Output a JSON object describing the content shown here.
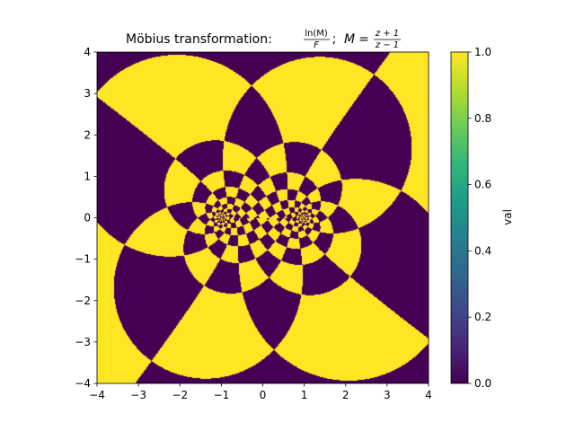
{
  "chart_data": {
    "type": "heatmap",
    "title": "Möbius transformation: ln(M)/F; M = (z+1)/(z−1)",
    "title_parts": {
      "prefix": "Möbius transformation: ",
      "num1": "ln(M)",
      "den1": "F",
      "sep": "; ",
      "lhs": "M",
      "eq": " = ",
      "num2": "z + 1",
      "den2": "z − 1"
    },
    "xlabel": "",
    "ylabel": "",
    "xlim": [
      -4,
      4
    ],
    "ylim": [
      -4,
      4
    ],
    "x_ticks": [
      -4,
      -3,
      -2,
      -1,
      0,
      1,
      2,
      3,
      4
    ],
    "y_ticks": [
      -4,
      -3,
      -2,
      -1,
      0,
      1,
      2,
      3,
      4
    ],
    "x_tick_labels": [
      "−4",
      "−3",
      "−2",
      "−1",
      "0",
      "1",
      "2",
      "3",
      "4"
    ],
    "y_tick_labels": [
      "−4",
      "−3",
      "−2",
      "−1",
      "0",
      "1",
      "2",
      "3",
      "4"
    ],
    "colorbar": {
      "label": "val",
      "range": [
        0.0,
        1.0
      ],
      "ticks": [
        0.0,
        0.2,
        0.4,
        0.6,
        0.8,
        1.0
      ],
      "tick_labels": [
        "0.0",
        "0.2",
        "0.4",
        "0.6",
        "0.8",
        "1.0"
      ],
      "colormap": "viridis"
    },
    "pattern": {
      "description_function": "checkerboard of floor(Re(ln M)*k) + floor(Im(ln M)*k) parity",
      "poles": [
        [
          -1,
          0
        ],
        [
          1,
          0
        ]
      ],
      "radial_divisions_per_unit": 2.5,
      "angular_divisions_per_radian": 2.2
    },
    "grid": false,
    "colors": {
      "low": "#440154",
      "high": "#fde725"
    }
  }
}
